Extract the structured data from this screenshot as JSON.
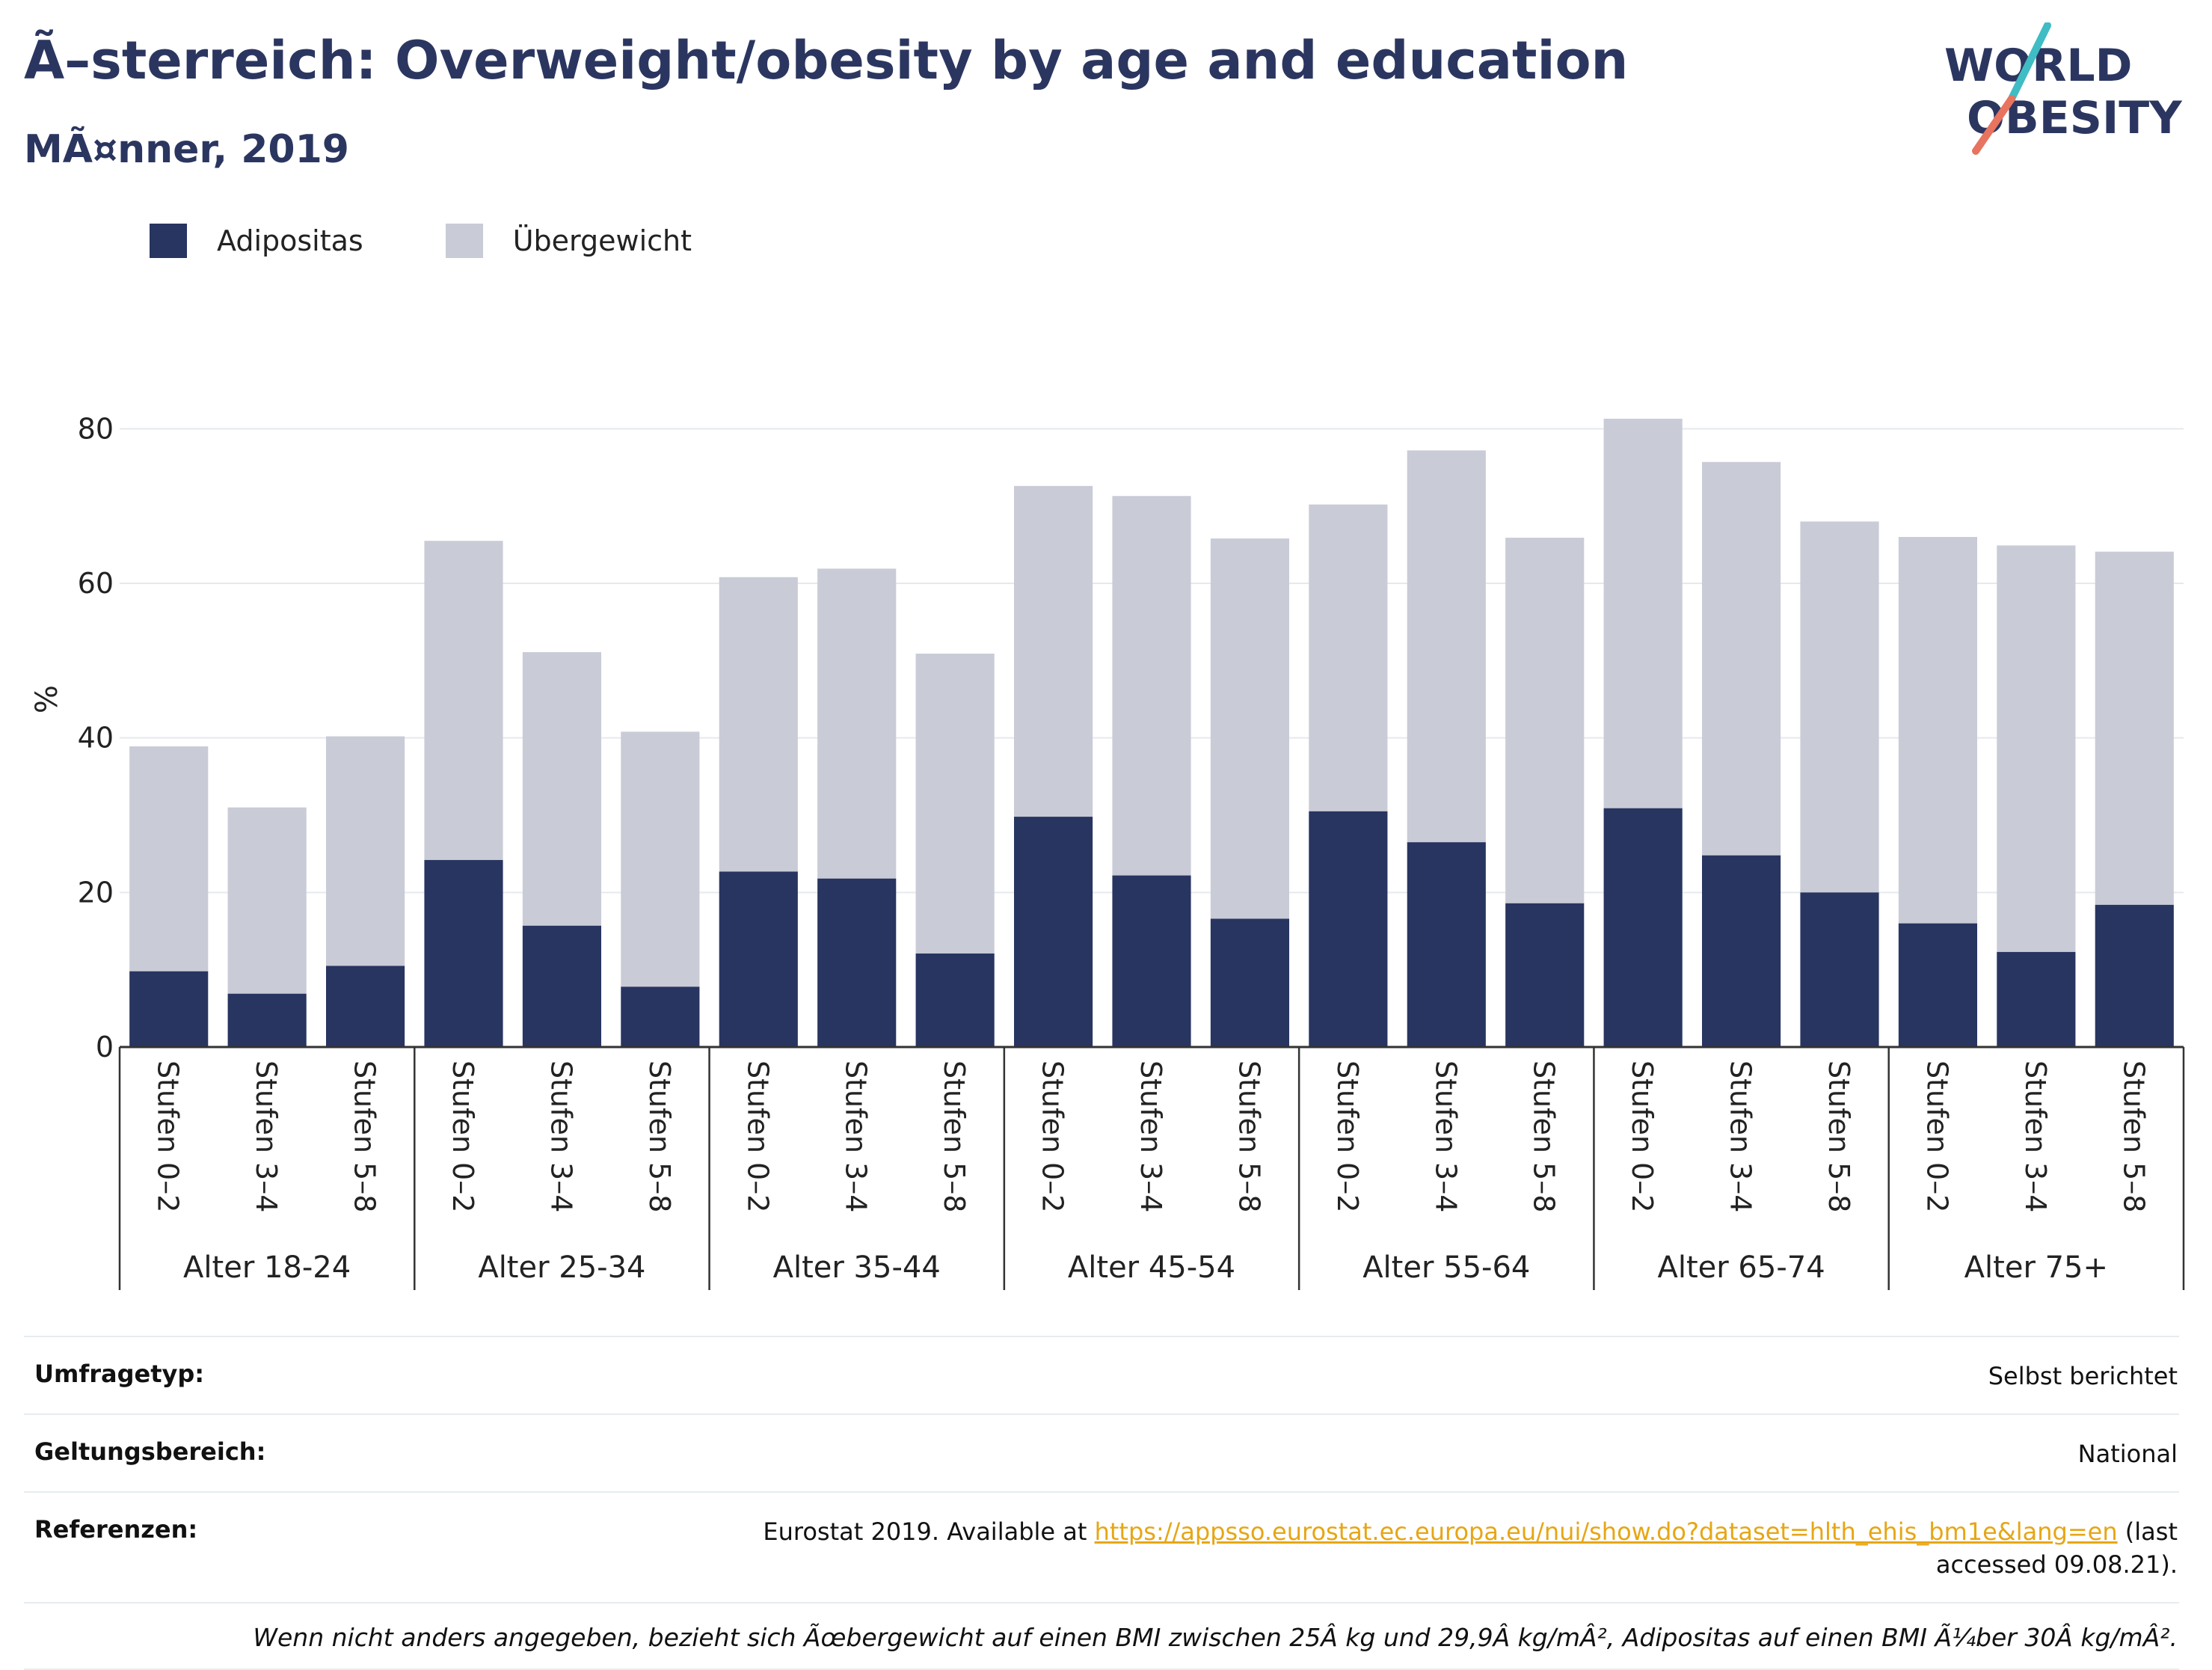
{
  "title": "Ã–sterreich: Overweight/obesity by age and education",
  "subtitle": "MÃ¤nner, 2019",
  "logo": {
    "line1": "WORLD",
    "line2": "OBESITY"
  },
  "legend": [
    {
      "label": "Adipositas",
      "color": "#283561"
    },
    {
      "label": "Übergewicht",
      "color": "#c9cbd6"
    }
  ],
  "chart_data": {
    "type": "bar",
    "stacked": true,
    "ylabel": "%",
    "ylim": [
      0,
      90
    ],
    "yticks": [
      0,
      20,
      40,
      60,
      80
    ],
    "grid": true,
    "legend_position": "top-left",
    "groups": [
      "Alter 18-24",
      "Alter 25-34",
      "Alter 35-44",
      "Alter 45-54",
      "Alter 55-64",
      "Alter 65-74",
      "Alter 75+"
    ],
    "subcategories": [
      "Stufen 0–2",
      "Stufen 3–4",
      "Stufen 5–8"
    ],
    "series": [
      {
        "name": "Adipositas",
        "color": "#283561",
        "values": [
          9.8,
          6.9,
          10.5,
          24.2,
          15.7,
          7.8,
          22.7,
          21.8,
          12.1,
          29.8,
          22.2,
          16.6,
          30.5,
          26.5,
          18.6,
          30.9,
          24.8,
          20.0,
          16.0,
          12.3,
          18.4
        ]
      },
      {
        "name": "Übergewicht",
        "color": "#c9cbd6",
        "values": [
          29.1,
          24.1,
          29.7,
          41.3,
          35.4,
          33.0,
          38.1,
          40.1,
          38.8,
          42.8,
          49.1,
          49.2,
          39.7,
          50.7,
          47.3,
          50.4,
          50.9,
          48.0,
          50.0,
          52.6,
          45.7
        ]
      }
    ]
  },
  "meta": {
    "rows": [
      {
        "key": "Umfragetyp:",
        "value": "Selbst berichtet"
      },
      {
        "key": "Geltungsbereich:",
        "value": "National"
      }
    ],
    "references": {
      "key": "Referenzen:",
      "prefix": "Eurostat 2019. Available at ",
      "link": "https://appsso.eurostat.ec.europa.eu/nui/show.do?dataset=hlth_ehis_bm1e&lang=en",
      "suffix": " (last accessed 09.08.21)."
    },
    "note": "Wenn nicht anders angegeben, bezieht sich Ãœbergewicht auf einen BMI zwischen 25Â kg und 29,9Â kg/mÂ², Adipositas auf einen BMI Ã¼ber 30Â kg/mÂ²."
  }
}
